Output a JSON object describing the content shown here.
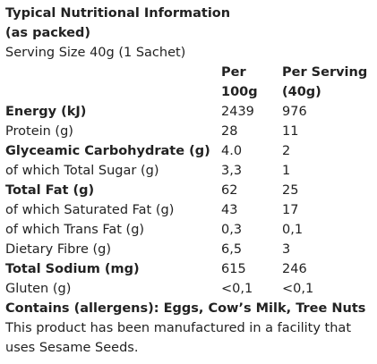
{
  "heading": {
    "line1": "Typical Nutritional Information",
    "line2": "(as packed)"
  },
  "serving_size": "Serving Size 40g (1 Sachet)",
  "columns": {
    "per100_line1": "Per",
    "per100_line2": "100g",
    "perserving_line1": "Per Serving",
    "perserving_line2": "(40g)"
  },
  "rows": [
    {
      "label": "Energy (kJ)",
      "per100": "2439",
      "perserving": "976",
      "bold": true
    },
    {
      "label": "Protein (g)",
      "per100": "28",
      "perserving": "11",
      "bold": false
    },
    {
      "label": "Glyceamic Carbohydrate (g)",
      "per100": "4.0",
      "perserving": "2",
      "bold": true
    },
    {
      "label": "of which Total Sugar (g)",
      "per100": "3,3",
      "perserving": "1",
      "bold": false
    },
    {
      "label": "Total Fat (g)",
      "per100": "62",
      "perserving": "25",
      "bold": true
    },
    {
      "label": "of which Saturated Fat (g)",
      "per100": "43",
      "perserving": "17",
      "bold": false
    },
    {
      "label": "of which Trans Fat (g)",
      "per100": "0,3",
      "perserving": "0,1",
      "bold": false
    },
    {
      "label": "Dietary Fibre (g)",
      "per100": "6,5",
      "perserving": "3",
      "bold": false
    },
    {
      "label": "Total Sodium (mg)",
      "per100": "615",
      "perserving": "246",
      "bold": true
    },
    {
      "label": "Gluten (g)",
      "per100": "<0,1",
      "perserving": "<0,1",
      "bold": false
    }
  ],
  "allergens": "Contains (allergens): Eggs, Cow’s Milk, Tree Nuts",
  "facility_note": "This product has been manufactured in a facility that uses Sesame Seeds."
}
